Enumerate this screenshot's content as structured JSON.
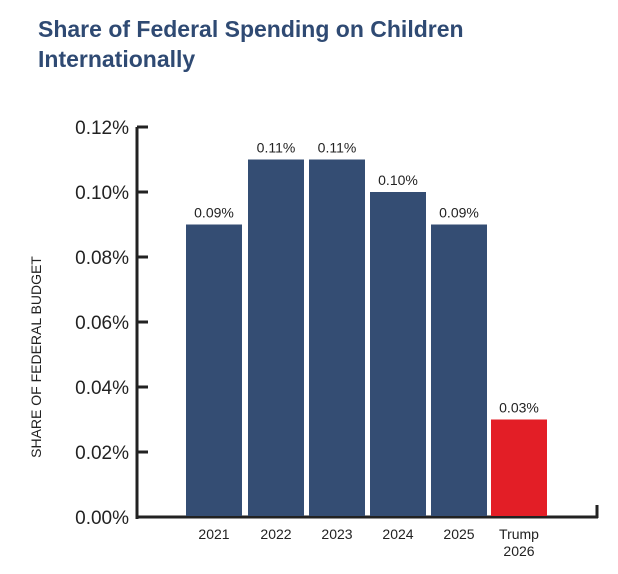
{
  "chart_data": {
    "type": "bar",
    "title": "Share of Federal Spending on Children Internationally",
    "xlabel": "",
    "ylabel": "SHARE OF FEDERAL BUDGET",
    "categories": [
      "2021",
      "2022",
      "2023",
      "2024",
      "2025",
      "Trump 2026"
    ],
    "category_lines": [
      [
        "2021"
      ],
      [
        "2022"
      ],
      [
        "2023"
      ],
      [
        "2024"
      ],
      [
        "2025"
      ],
      [
        "Trump",
        "2026"
      ]
    ],
    "values": [
      0.09,
      0.11,
      0.11,
      0.1,
      0.09,
      0.03
    ],
    "value_labels": [
      "0.09%",
      "0.11%",
      "0.11%",
      "0.10%",
      "0.09%",
      "0.03%"
    ],
    "colors": [
      "#344d73",
      "#344d73",
      "#344d73",
      "#344d73",
      "#344d73",
      "#e31e26"
    ],
    "ylim": [
      0,
      0.12
    ],
    "yticks": [
      0,
      0.02,
      0.04,
      0.06,
      0.08,
      0.1,
      0.12
    ],
    "ytick_labels": [
      "0.00%",
      "0.02%",
      "0.04%",
      "0.06%",
      "0.08%",
      "0.10%",
      "0.12%"
    ],
    "grid": false,
    "legend": "none"
  }
}
